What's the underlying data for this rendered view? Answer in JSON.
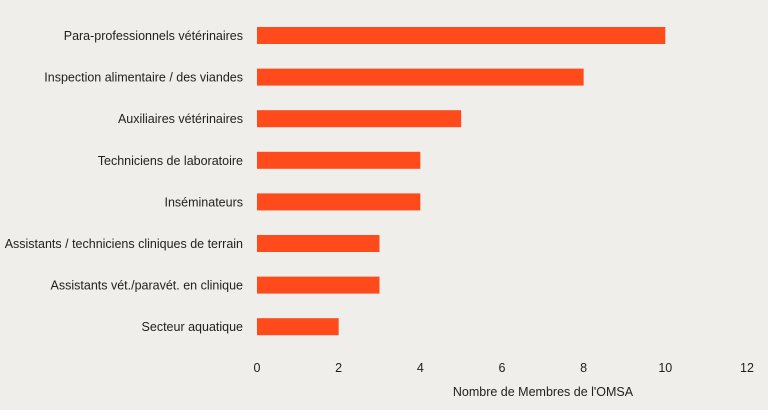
{
  "chart_data": {
    "type": "bar",
    "orientation": "horizontal",
    "categories": [
      "Para-professionnels vétérinaires",
      "Inspection alimentaire / des viandes",
      "Auxiliaires vétérinaires",
      "Techniciens de laboratoire",
      "Inséminateurs",
      "Assistants / techniciens cliniques de terrain",
      "Assistants vét./paravét. en clinique",
      "Secteur aquatique"
    ],
    "values": [
      10,
      8,
      5,
      4,
      4,
      3,
      3,
      2
    ],
    "title": "",
    "xlabel": "Nombre de Membres de l'OMSA",
    "ylabel": "",
    "xlim": [
      0,
      12
    ],
    "xticks": [
      0,
      2,
      4,
      6,
      8,
      10,
      12
    ],
    "grid": false,
    "colors": {
      "bar": "#ff4a1c",
      "background": "#efeeea",
      "text": "#1f1f1f"
    }
  }
}
